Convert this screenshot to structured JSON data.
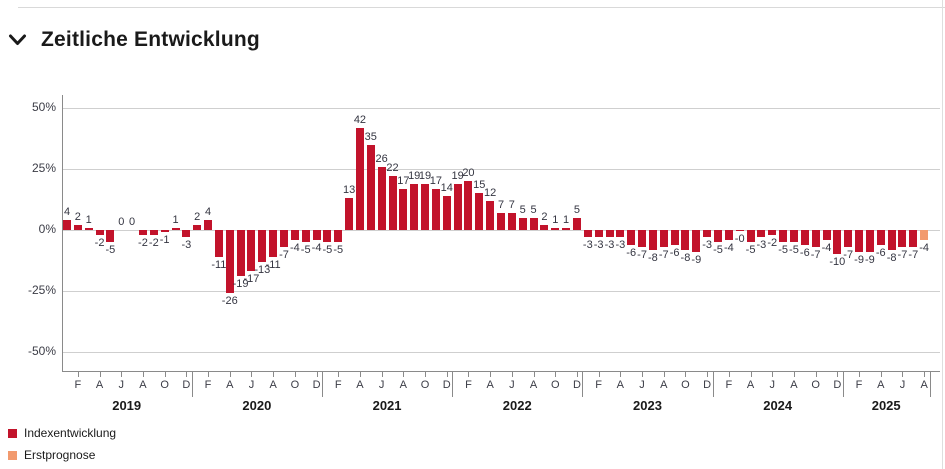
{
  "header": {
    "title": "Zeitliche Entwicklung"
  },
  "chart": {
    "colors": {
      "index_bar": "#c2132b",
      "forecast_bar": "#f29a6e",
      "grid": "#cfcfcf",
      "axis": "#8a8a8a"
    },
    "legend": [
      {
        "label": "Indexentwicklung",
        "color": "#c2132b"
      },
      {
        "label": "Erstprognose",
        "color": "#f29a6e"
      }
    ]
  },
  "chart_data": {
    "type": "bar",
    "title": "Zeitliche Entwicklung",
    "unit": "%",
    "ylim": [
      -50,
      50
    ],
    "grid": true,
    "legend_position": "bottom-left",
    "y_ticks": [
      {
        "label": "50%",
        "value": 50
      },
      {
        "label": "25%",
        "value": 25
      },
      {
        "label": "0%",
        "value": 0
      },
      {
        "label": "-25%",
        "value": -25
      },
      {
        "label": "-50%",
        "value": -50
      }
    ],
    "x_month_letters": [
      "F",
      "A",
      "J",
      "A",
      "O",
      "D"
    ],
    "series_name": "Indexentwicklung",
    "forecast_name": "Erstprognose",
    "years": [
      {
        "year": "2019",
        "values": [
          4,
          2,
          1,
          -2,
          -5,
          0,
          0,
          -2,
          -2,
          -1,
          1,
          -3
        ],
        "labels": [
          "4",
          "2",
          "1",
          "-2",
          "-5",
          "0",
          "0",
          "-2",
          "-2",
          "-1",
          "1",
          "-3"
        ]
      },
      {
        "year": "2020",
        "values": [
          2,
          4,
          -11,
          -26,
          -19,
          -17,
          -13,
          -11,
          -7,
          -4,
          -5,
          -4
        ],
        "labels": [
          "2",
          "4",
          "-11",
          "-26",
          "-19",
          "-17",
          "-13",
          "-11",
          "-7",
          "-4",
          "-5",
          "-4"
        ]
      },
      {
        "year": "2021",
        "values": [
          -5,
          -5,
          13,
          42,
          35,
          26,
          22,
          17,
          19,
          19,
          17,
          14
        ],
        "labels": [
          "-5",
          "-5",
          "13",
          "42",
          "35",
          "26",
          "22",
          "17",
          "19",
          "19",
          "17",
          "14"
        ]
      },
      {
        "year": "2022",
        "values": [
          19,
          20,
          15,
          12,
          7,
          7,
          5,
          5,
          2,
          1,
          1,
          5
        ],
        "labels": [
          "19",
          "20",
          "15",
          "12",
          "7",
          "7",
          "5",
          "5",
          "2",
          "1",
          "1",
          "5"
        ]
      },
      {
        "year": "2023",
        "values": [
          -3,
          -3,
          -3,
          -3,
          -6,
          -7,
          -8,
          -7,
          -6,
          -8,
          -9,
          -3
        ],
        "labels": [
          "-3",
          "-3",
          "-3",
          "-3",
          "-6",
          "-7",
          "-8",
          "-7",
          "-6",
          "-8",
          "-9",
          "-3"
        ]
      },
      {
        "year": "2024",
        "values": [
          -5,
          -4,
          -0.5,
          -5,
          -3,
          -2,
          -5,
          -5,
          -6,
          -7,
          -4,
          -10
        ],
        "labels": [
          "-5",
          "-4",
          "-0",
          "-5",
          "-3",
          "-2",
          "-5",
          "-5",
          "-6",
          "-7",
          "-4",
          "-10"
        ]
      },
      {
        "year": "2025",
        "values": [
          -7,
          -9,
          -9,
          -6,
          -8,
          -7,
          -7,
          -4
        ],
        "labels": [
          "-7",
          "-9",
          "-9",
          "-6",
          "-8",
          "-7",
          "-7",
          "-4"
        ],
        "forecast_last": true
      }
    ]
  }
}
